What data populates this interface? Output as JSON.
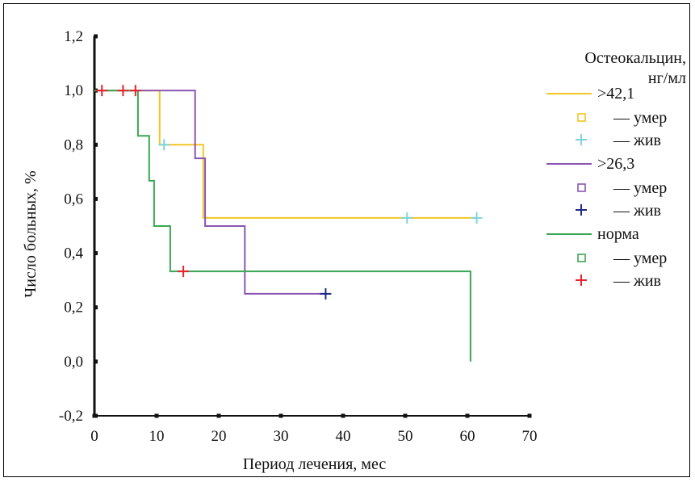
{
  "chart_data": {
    "type": "line",
    "xlabel": "Период лечения, мес",
    "ylabel": "Число больных, %",
    "xlim": [
      0,
      70
    ],
    "ylim": [
      -0.2,
      1.2
    ],
    "xticks": [
      0,
      10,
      20,
      30,
      40,
      50,
      60,
      70
    ],
    "xtick_labels": [
      "0",
      "10",
      "20",
      "30",
      "40",
      "50",
      "60",
      "70"
    ],
    "yticks": [
      -0.2,
      0.0,
      0.2,
      0.4,
      0.6,
      0.8,
      1.0,
      1.2
    ],
    "ytick_labels": [
      "-0,2",
      "0,0",
      "0,2",
      "0,4",
      "0,6",
      "0,8",
      "1,0",
      "1,2"
    ],
    "grid": false,
    "legend_placement": "right",
    "legend": {
      "title_line1": "Остеокальцин,",
      "title_line2": "нг/мл",
      "died_label": "— умер",
      "alive_label": "— жив"
    },
    "series": [
      {
        "name": ">42,1",
        "color": "#f2c522",
        "died_marker_color": "#f2c522",
        "alive_marker_color": "#7fd3dc",
        "steps": [
          [
            0,
            1.0
          ],
          [
            10.5,
            1.0
          ],
          [
            10.5,
            0.8
          ],
          [
            17.5,
            0.8
          ],
          [
            17.5,
            0.53
          ],
          [
            61.5,
            0.53
          ]
        ],
        "censored_alive": [
          [
            11.2,
            0.8
          ],
          [
            50.3,
            0.53
          ],
          [
            61.5,
            0.53
          ]
        ]
      },
      {
        "name": ">26,3",
        "color": "#8a55b3",
        "died_marker_color": "#8a55b3",
        "alive_marker_color": "#1f2a86",
        "steps": [
          [
            0,
            1.0
          ],
          [
            16.2,
            1.0
          ],
          [
            16.2,
            0.75
          ],
          [
            17.8,
            0.75
          ],
          [
            17.8,
            0.5
          ],
          [
            24.2,
            0.5
          ],
          [
            24.2,
            0.25
          ],
          [
            37.2,
            0.25
          ]
        ],
        "censored_alive": [
          [
            37.2,
            0.25
          ]
        ]
      },
      {
        "name": "норма",
        "color": "#3aa655",
        "died_marker_color": "#3aa655",
        "alive_marker_color": "#e8232a",
        "steps": [
          [
            0,
            1.0
          ],
          [
            7.0,
            1.0
          ],
          [
            7.0,
            0.833
          ],
          [
            8.8,
            0.833
          ],
          [
            8.8,
            0.667
          ],
          [
            9.6,
            0.667
          ],
          [
            9.6,
            0.5
          ],
          [
            12.2,
            0.5
          ],
          [
            12.2,
            0.333
          ],
          [
            60.5,
            0.333
          ],
          [
            60.5,
            0.0
          ]
        ],
        "censored_alive": [
          [
            1.2,
            1.0
          ],
          [
            4.6,
            1.0
          ],
          [
            6.6,
            1.0
          ],
          [
            14.3,
            0.333
          ]
        ]
      }
    ]
  }
}
